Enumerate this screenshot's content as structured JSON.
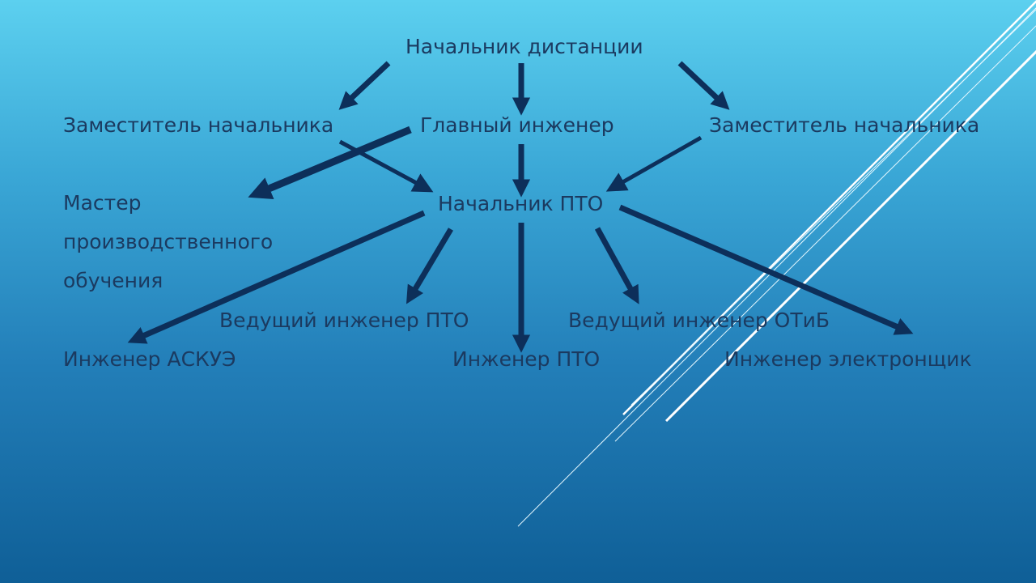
{
  "colors": {
    "text": "#1b3a60",
    "arrow": "#0d2f5a",
    "deco_line": "#ffffff"
  },
  "nodes": {
    "chief_of_distance": "Начальник дистанции",
    "deputy_left": "Заместитель начальника",
    "chief_engineer": "Главный инженер",
    "deputy_right": "Заместитель начальника",
    "training_master": "Мастер производственного обучения",
    "head_pto": "Начальник ПТО",
    "lead_engineer_pto": "Ведущий инженер ПТО",
    "lead_engineer_otib": "Ведущий инженер ОТиБ",
    "engineer_askue": "Инженер АСКУЭ",
    "engineer_pto": "Инженер ПТО",
    "engineer_electronics": "Инженер электронщик"
  }
}
